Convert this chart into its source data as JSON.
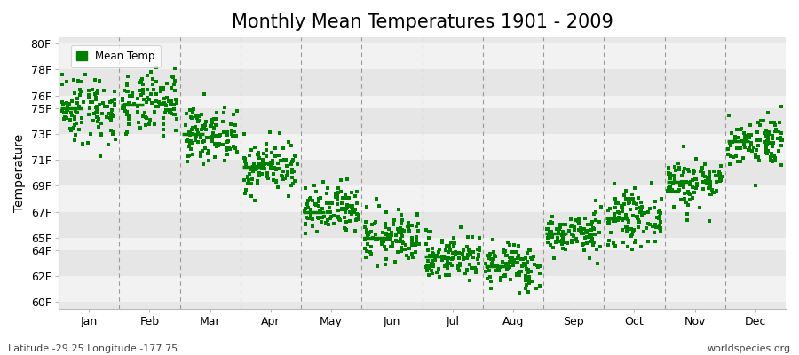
{
  "title": "Monthly Mean Temperatures 1901 - 2009",
  "ylabel": "Temperature",
  "xlabel_bottom_left": "Latitude -29.25 Longitude -177.75",
  "xlabel_bottom_right": "worldspecies.org",
  "legend_label": "Mean Temp",
  "yticks": [
    60,
    62,
    64,
    65,
    67,
    69,
    71,
    73,
    75,
    76,
    78,
    80
  ],
  "ytick_labels": [
    "60F",
    "62F",
    "64F",
    "65F",
    "67F",
    "69F",
    "71F",
    "73F",
    "75F",
    "76F",
    "78F",
    "80F"
  ],
  "ylim": [
    59.5,
    80.5
  ],
  "xlim": [
    0,
    12
  ],
  "months": [
    "Jan",
    "Feb",
    "Mar",
    "Apr",
    "May",
    "Jun",
    "Jul",
    "Aug",
    "Sep",
    "Oct",
    "Nov",
    "Dec"
  ],
  "month_means": [
    75.0,
    75.3,
    73.0,
    70.5,
    67.0,
    65.0,
    63.5,
    62.8,
    65.3,
    66.5,
    69.3,
    72.5
  ],
  "scatter_color": "#008000",
  "line_color": "#008000",
  "bg_stripe_light": "#f2f2f2",
  "bg_stripe_dark": "#e6e6e6",
  "dashed_line_color": "#999999",
  "title_fontsize": 15,
  "axis_label_fontsize": 10,
  "tick_fontsize": 9,
  "n_years": 109,
  "seed": 42,
  "monthly_std": [
    1.4,
    1.2,
    1.0,
    1.0,
    1.0,
    1.0,
    0.9,
    0.9,
    0.8,
    1.0,
    1.0,
    1.0
  ]
}
